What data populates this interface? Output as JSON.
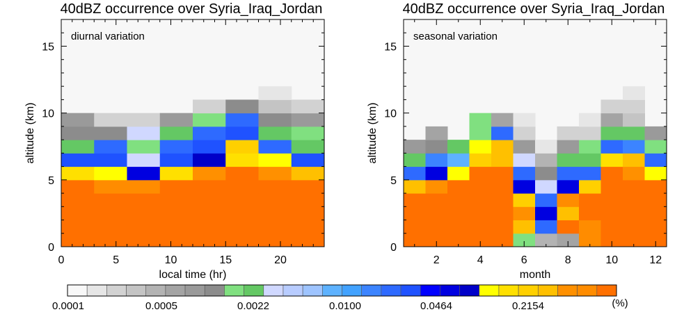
{
  "chart_data": [
    {
      "type": "heatmap",
      "title": "40dBZ occurrence over Syria_Iraq_Jordan",
      "annotation": "diurnal variation",
      "xlabel": "local time (hr)",
      "ylabel": "altitude (km)",
      "xlim": [
        0,
        24
      ],
      "ylim": [
        0,
        17
      ],
      "xticks": [
        "0",
        "5",
        "10",
        "15",
        "20"
      ],
      "yticks": [
        "0",
        "5",
        "10",
        "15"
      ],
      "x_bins": [
        "0-3",
        "3-6",
        "6-9",
        "9-12",
        "12-15",
        "15-18",
        "18-21",
        "21-24"
      ],
      "y_bins_km": [
        [
          0,
          1
        ],
        [
          1,
          2
        ],
        [
          2,
          3
        ],
        [
          3,
          4
        ],
        [
          4,
          5
        ],
        [
          5,
          6
        ],
        [
          6,
          7
        ],
        [
          7,
          8
        ],
        [
          8,
          9
        ],
        [
          9,
          10
        ],
        [
          10,
          11
        ],
        [
          11,
          12
        ]
      ],
      "values_color_index_rows_from_bottom": [
        [
          31,
          34,
          34,
          31,
          31,
          34,
          34,
          31
        ],
        [
          35,
          35,
          35,
          35,
          36,
          36,
          35,
          35
        ],
        [
          31,
          31,
          31,
          31,
          34,
          35,
          34,
          31
        ],
        [
          29,
          29,
          29,
          29,
          30,
          30,
          30,
          29
        ],
        [
          27,
          26,
          26,
          27,
          30,
          31,
          28,
          27
        ],
        [
          22,
          21,
          19,
          22,
          25,
          27,
          25,
          24
        ],
        [
          17,
          17,
          10,
          17,
          20,
          22,
          21,
          17
        ],
        [
          9,
          16,
          8,
          16,
          17,
          23,
          16,
          9
        ],
        [
          7,
          7,
          10,
          9,
          16,
          17,
          9,
          8
        ],
        [
          6,
          2,
          2,
          6,
          8,
          16,
          7,
          6
        ],
        [
          null,
          null,
          null,
          null,
          2,
          7,
          3,
          2
        ],
        [
          null,
          null,
          null,
          null,
          null,
          null,
          1,
          null
        ]
      ]
    },
    {
      "type": "heatmap",
      "title": "40dBZ occurrence over Syria_Iraq_Jordan",
      "annotation": "seasonal variation",
      "xlabel": "month",
      "ylabel": "altitude (km)",
      "xlim": [
        0.5,
        12.5
      ],
      "ylim": [
        0,
        17
      ],
      "xticks": [
        "2",
        "4",
        "6",
        "8",
        "10",
        "12"
      ],
      "yticks": [
        "0",
        "5",
        "10",
        "15"
      ],
      "x_bins": [
        "1",
        "2",
        "3",
        "4",
        "5",
        "6",
        "7",
        "8",
        "9",
        "10",
        "11",
        "12"
      ],
      "y_bins_km": [
        [
          0,
          1
        ],
        [
          1,
          2
        ],
        [
          2,
          3
        ],
        [
          3,
          4
        ],
        [
          4,
          5
        ],
        [
          5,
          6
        ],
        [
          6,
          7
        ],
        [
          7,
          8
        ],
        [
          8,
          9
        ],
        [
          9,
          10
        ],
        [
          10,
          11
        ],
        [
          11,
          12
        ]
      ],
      "values_color_index_rows_from_bottom": [
        [
          40,
          36,
          31,
          35,
          31,
          8,
          4,
          5,
          26,
          31,
          35,
          40
        ],
        [
          40,
          37,
          37,
          40,
          36,
          24,
          16,
          27,
          26,
          41,
          42,
          42
        ],
        [
          31,
          31,
          30,
          40,
          35,
          25,
          19,
          24,
          31,
          37,
          36,
          36
        ],
        [
          28,
          30,
          29,
          31,
          31,
          23,
          16,
          26,
          31,
          31,
          32,
          29
        ],
        [
          24,
          25,
          27,
          30,
          31,
          19,
          10,
          19,
          23,
          31,
          30,
          28
        ],
        [
          16,
          19,
          21,
          30,
          28,
          16,
          7,
          16,
          16,
          27,
          25,
          21
        ],
        [
          9,
          15,
          13,
          23,
          24,
          10,
          4,
          9,
          9,
          22,
          24,
          16
        ],
        [
          6,
          7,
          9,
          21,
          24,
          6,
          1,
          6,
          8,
          16,
          15,
          8
        ],
        [
          null,
          5,
          null,
          8,
          16,
          2,
          null,
          2,
          2,
          9,
          9,
          6
        ],
        [
          null,
          null,
          null,
          8,
          5,
          1,
          null,
          null,
          1,
          5,
          3,
          null
        ],
        [
          null,
          null,
          null,
          null,
          null,
          null,
          null,
          null,
          null,
          2,
          2,
          null
        ],
        [
          null,
          null,
          null,
          null,
          null,
          null,
          null,
          null,
          null,
          null,
          1,
          null
        ]
      ]
    }
  ],
  "colorbar": {
    "unit": "(%)",
    "tick_labels": [
      "0.0001",
      "0.0005",
      "0.0022",
      "0.0100",
      "0.0464",
      "0.2154"
    ],
    "colors": [
      "#ffffff",
      "#f6f6f6",
      "#ececec",
      "#e2e2e2",
      "#d6d6d6",
      "#cacaca",
      "#bcbcbc",
      "#afafaf",
      "#9f9f9f",
      "#8f8f8f",
      "#80e080",
      "#70d870",
      "#64c864",
      "#60b860",
      "#cfe0ff",
      "#b8d4ff",
      "#9cc8ff",
      "#7ebaff",
      "#62acff",
      "#4f9dff",
      "#3d8aff",
      "#2d72ff",
      "#0000ff",
      "#0000ef",
      "#0000dd",
      "#0000cc",
      "#0000bb",
      "#0000aa",
      "#ffff00",
      "#ffee00",
      "#ffdd00",
      "#ffcc00",
      "#ffb800",
      "#ffa000",
      "#ff8c00",
      "#ff7800",
      "#ff6400",
      "#f04000",
      "#e02a00",
      "#d01c00",
      "#c00000",
      "#a80000",
      "#8c0000",
      "#6b1010"
    ],
    "cell_colors": [
      "#f8f8f8",
      "#e6e6e6",
      "#d2d2d2",
      "#c4c4c4",
      "#b3b3b3",
      "#a4a4a4",
      "#9a9a9a",
      "#8c8c8c",
      "#80e080",
      "#64c864",
      "#d0d8ff",
      "#b8ccff",
      "#9ec4ff",
      "#5eb2ff",
      "#42a2ff",
      "#3c84ff",
      "#2e6aff",
      "#1f52ff",
      "#0000ff",
      "#0000e0",
      "#0000c8",
      "#ffff00",
      "#ffe000",
      "#ffd000",
      "#ffc000",
      "#ff9000",
      "#ff8c00",
      "#ff7000"
    ]
  }
}
